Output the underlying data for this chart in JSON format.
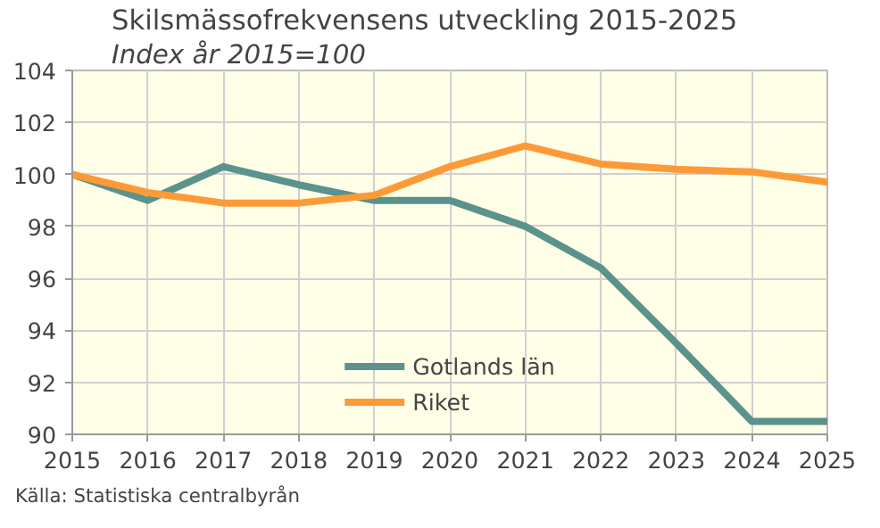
{
  "chart_data": {
    "type": "line",
    "title": "Skilsmässofrekvensens utveckling 2015-2025",
    "subtitle": "Index år 2015=100",
    "x": [
      2015,
      2016,
      2017,
      2018,
      2019,
      2020,
      2021,
      2022,
      2023,
      2024,
      2025
    ],
    "series": [
      {
        "name": "Gotlands län",
        "color": "#5b928c",
        "values": [
          100,
          99.0,
          100.3,
          99.6,
          99.0,
          99.0,
          98.0,
          96.4,
          93.5,
          90.5,
          90.5
        ]
      },
      {
        "name": "Riket",
        "color": "#fd9a38",
        "values": [
          100,
          99.3,
          98.9,
          98.9,
          99.2,
          100.3,
          101.1,
          100.4,
          100.2,
          100.1,
          99.7
        ]
      }
    ],
    "xlim": [
      2015,
      2025
    ],
    "xticks": [
      2015,
      2016,
      2017,
      2018,
      2019,
      2020,
      2021,
      2022,
      2023,
      2024,
      2025
    ],
    "ylim": [
      90,
      104
    ],
    "yticks": [
      90,
      92,
      94,
      96,
      98,
      100,
      102,
      104
    ],
    "grid": true,
    "legend": "bottom",
    "marker": "none",
    "line_style": "solid",
    "annotations": [
      "Källa: Statistiska centralbyrån"
    ]
  }
}
